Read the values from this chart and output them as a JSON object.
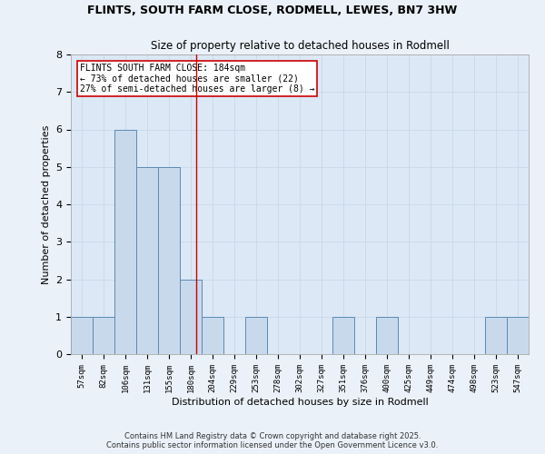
{
  "title1": "FLINTS, SOUTH FARM CLOSE, RODMELL, LEWES, BN7 3HW",
  "title2": "Size of property relative to detached houses in Rodmell",
  "xlabel": "Distribution of detached houses by size in Rodmell",
  "ylabel": "Number of detached properties",
  "categories": [
    "57sqm",
    "82sqm",
    "106sqm",
    "131sqm",
    "155sqm",
    "180sqm",
    "204sqm",
    "229sqm",
    "253sqm",
    "278sqm",
    "302sqm",
    "327sqm",
    "351sqm",
    "376sqm",
    "400sqm",
    "425sqm",
    "449sqm",
    "474sqm",
    "498sqm",
    "523sqm",
    "547sqm"
  ],
  "values": [
    1,
    1,
    6,
    5,
    5,
    2,
    1,
    0,
    1,
    0,
    0,
    0,
    1,
    0,
    1,
    0,
    0,
    0,
    0,
    1,
    1
  ],
  "bar_color": "#c9d9ec",
  "bar_edge_color": "#5a8ab5",
  "grid_color": "#c8d8e8",
  "background_color": "#dce8f5",
  "fig_background_color": "#eaf1f8",
  "property_label": "FLINTS SOUTH FARM CLOSE: 184sqm",
  "annotation_line1": "← 73% of detached houses are smaller (22)",
  "annotation_line2": "27% of semi-detached houses are larger (8) →",
  "vline_color": "#cc0000",
  "vline_position": 5.27,
  "annotation_box_color": "#ffffff",
  "annotation_box_edge": "#cc0000",
  "ylim": [
    0,
    8
  ],
  "yticks": [
    0,
    1,
    2,
    3,
    4,
    5,
    6,
    7,
    8
  ],
  "footer1": "Contains HM Land Registry data © Crown copyright and database right 2025.",
  "footer2": "Contains public sector information licensed under the Open Government Licence v3.0."
}
